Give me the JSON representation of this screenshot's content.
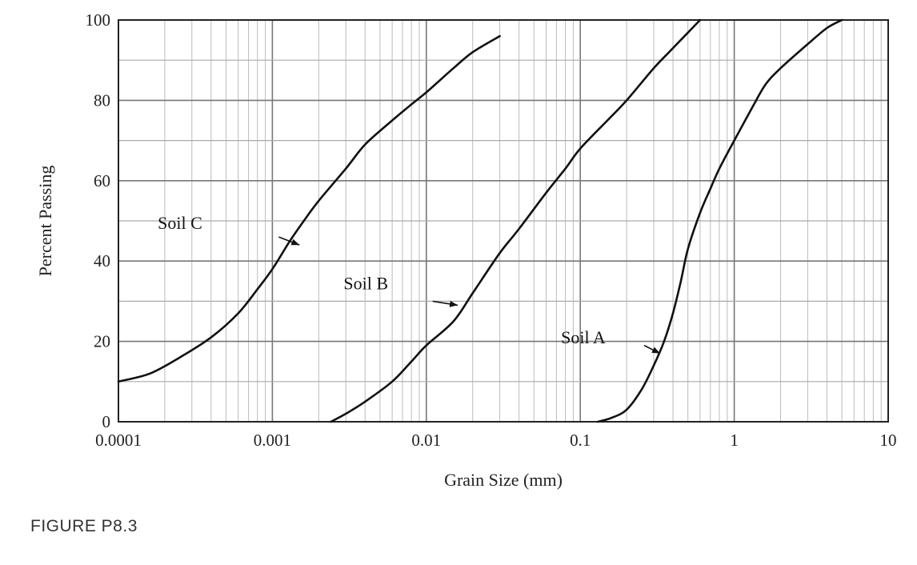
{
  "figure": {
    "caption": "FIGURE P8.3"
  },
  "chart_data": {
    "type": "line",
    "xlabel": "Grain Size (mm)",
    "ylabel": "Percent Passing",
    "xscale": "log",
    "xlim": [
      0.0001,
      10
    ],
    "ylim": [
      0,
      100
    ],
    "grid": true,
    "x_tick_labels": [
      "0.0001",
      "0.001",
      "0.01",
      "0.1",
      "1",
      "10"
    ],
    "y_tick_labels": [
      "0",
      "20",
      "40",
      "60",
      "80",
      "100"
    ],
    "series": [
      {
        "name": "Soil C",
        "x": [
          0.0001,
          0.00016,
          0.00025,
          0.0004,
          0.0006,
          0.0008,
          0.001,
          0.0013,
          0.0016,
          0.002,
          0.003,
          0.004,
          0.006,
          0.008,
          0.01,
          0.015,
          0.02,
          0.03
        ],
        "y": [
          10,
          12,
          16,
          21,
          27,
          33,
          38,
          45,
          50,
          55,
          63,
          69,
          75,
          79,
          82,
          88,
          92,
          96
        ]
      },
      {
        "name": "Soil B",
        "x": [
          0.0024,
          0.003,
          0.004,
          0.006,
          0.008,
          0.01,
          0.015,
          0.02,
          0.03,
          0.04,
          0.06,
          0.08,
          0.1,
          0.15,
          0.2,
          0.3,
          0.4,
          0.6
        ],
        "y": [
          0,
          2,
          5,
          10,
          15,
          19,
          25,
          32,
          42,
          48,
          57,
          63,
          68,
          75,
          80,
          88,
          93,
          100
        ]
      },
      {
        "name": "Soil A",
        "x": [
          0.13,
          0.16,
          0.2,
          0.25,
          0.3,
          0.35,
          0.4,
          0.45,
          0.5,
          0.6,
          0.7,
          0.8,
          1,
          1.3,
          1.6,
          2,
          3,
          4,
          5
        ],
        "y": [
          0,
          1,
          3,
          8,
          14,
          20,
          27,
          35,
          43,
          52,
          58,
          63,
          70,
          78,
          84,
          88,
          94,
          98,
          100
        ]
      }
    ]
  }
}
